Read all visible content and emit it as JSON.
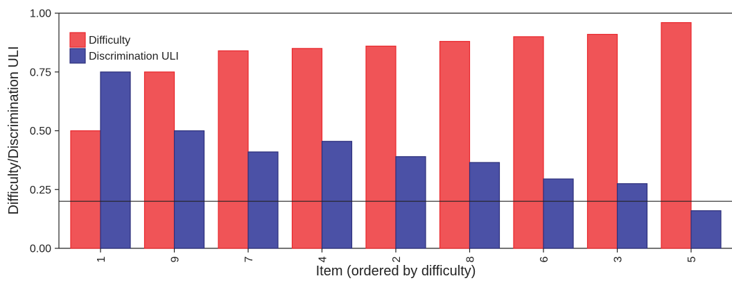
{
  "chart_data": {
    "type": "bar",
    "xlabel": "Item (ordered by difficulty)",
    "ylabel": "Difficulty/Discrimination ULI",
    "categories": [
      "1",
      "9",
      "7",
      "4",
      "2",
      "8",
      "6",
      "3",
      "5"
    ],
    "series": [
      {
        "name": "Difficulty",
        "color": "#f05457",
        "stroke": "#e8262b",
        "values": [
          0.5,
          0.75,
          0.84,
          0.85,
          0.86,
          0.88,
          0.9,
          0.91,
          0.96
        ]
      },
      {
        "name": "Discrimination ULI",
        "color": "#4b51a6",
        "stroke": "#2c2f7a",
        "values": [
          0.75,
          0.5,
          0.41,
          0.455,
          0.39,
          0.365,
          0.295,
          0.275,
          0.16
        ]
      }
    ],
    "ylim": [
      0,
      1
    ],
    "yticks": [
      "0.00",
      "0.25",
      "0.50",
      "0.75",
      "1.00"
    ],
    "reference_line": 0.2,
    "legend": "top-left",
    "grid": false
  }
}
